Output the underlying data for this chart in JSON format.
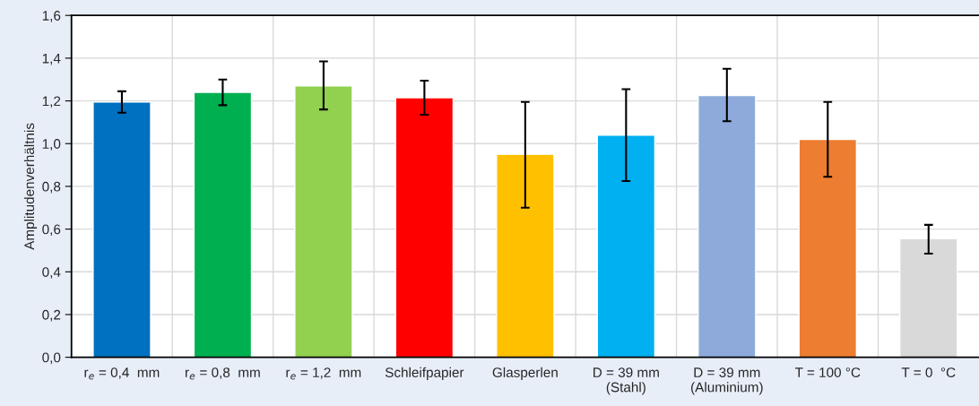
{
  "chart_data": {
    "type": "bar",
    "ylabel": "Amplitudenverhältnis",
    "categories": [
      "r$_{e}$ = 0,4  mm",
      "r$_{e}$ = 0,8  mm",
      "r$_{e}$ = 1,2  mm",
      "Schleifpapier",
      "Glasperlen",
      "D = 39 mm\n(Stahl)",
      "D = 39 mm\n(Aluminium)",
      "T = 100 °C",
      "T = 0  °C"
    ],
    "values": [
      1.195,
      1.24,
      1.27,
      1.215,
      0.95,
      1.04,
      1.225,
      1.02,
      0.555
    ],
    "colors": [
      "#0070c0",
      "#00b050",
      "#92d050",
      "#ff0000",
      "#ffc000",
      "#00b0f0",
      "#8eaadb",
      "#ed7d31",
      "#d9d9d9"
    ],
    "errors": [
      [
        1.145,
        1.245
      ],
      [
        1.18,
        1.3
      ],
      [
        1.16,
        1.385
      ],
      [
        1.135,
        1.295
      ],
      [
        0.7,
        1.195
      ],
      [
        0.825,
        1.255
      ],
      [
        1.105,
        1.35
      ],
      [
        0.845,
        1.195
      ],
      [
        0.485,
        0.62
      ]
    ],
    "ylim": [
      0,
      1.6
    ],
    "yticks": [
      {
        "value": 0,
        "label": "0,0"
      },
      {
        "value": 0.2,
        "label": "0,2"
      },
      {
        "value": 0.4,
        "label": "0,4"
      },
      {
        "value": 0.6,
        "label": "0,6"
      },
      {
        "value": 0.8,
        "label": "0,8"
      },
      {
        "value": 1.0,
        "label": "1,0"
      },
      {
        "value": 1.2,
        "label": "1,2"
      },
      {
        "value": 1.4,
        "label": "1,4"
      },
      {
        "value": 1.6,
        "label": "1,6"
      }
    ],
    "grid": true
  }
}
